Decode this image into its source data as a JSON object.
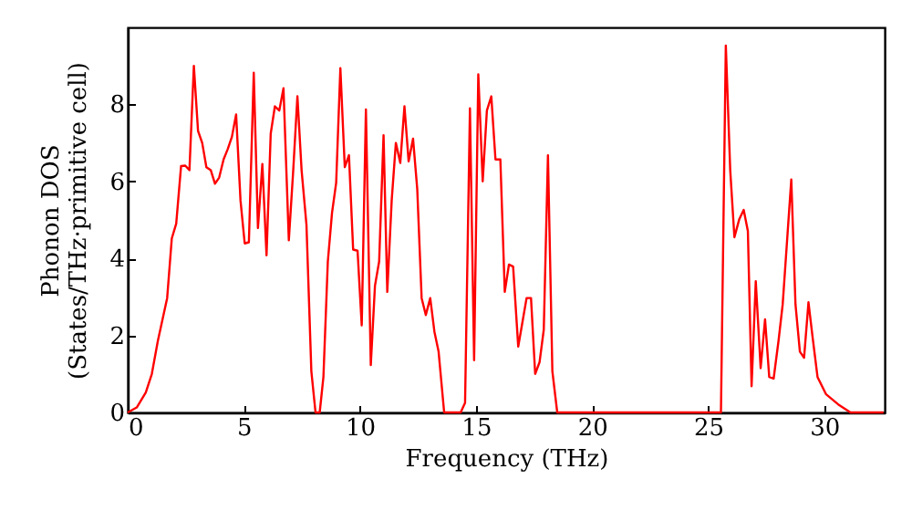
{
  "chart_data": {
    "type": "line",
    "xlabel": "Frequency (THz)",
    "ylabel": "Phonon DOS\n(States/THz·primitive cell)",
    "xlim": [
      0,
      32.6
    ],
    "ylim": [
      0,
      10
    ],
    "xticks": [
      0,
      5,
      10,
      15,
      20,
      25,
      30
    ],
    "yticks": [
      0,
      2,
      4,
      6,
      8
    ],
    "grid": false,
    "marker": "none",
    "line_style": "solid",
    "x": [
      0,
      0.39,
      0.78,
      1.04,
      1.3,
      1.7,
      1.9,
      2.09,
      2.3,
      2.48,
      2.66,
      2.85,
      3.03,
      3.21,
      3.39,
      3.58,
      3.76,
      3.94,
      4.13,
      4.31,
      4.49,
      4.67,
      4.86,
      5.04,
      5.22,
      5.43,
      5.61,
      5.8,
      5.98,
      6.16,
      6.34,
      6.53,
      6.71,
      6.94,
      7.13,
      7.31,
      7.49,
      7.7,
      7.91,
      8.09,
      8.27,
      8.43,
      8.62,
      8.8,
      8.98,
      9.16,
      9.35,
      9.53,
      9.71,
      9.9,
      10.08,
      10.26,
      10.47,
      10.65,
      10.83,
      11.02,
      11.18,
      11.37,
      11.55,
      11.74,
      11.92,
      12.1,
      12.29,
      12.47,
      12.66,
      12.84,
      13.03,
      13.21,
      13.39,
      13.63,
      14.34,
      14.53,
      14.74,
      14.92,
      15.1,
      15.29,
      15.47,
      15.66,
      15.84,
      16.05,
      16.24,
      16.42,
      16.6,
      16.82,
      17.0,
      17.18,
      17.37,
      17.55,
      17.74,
      17.92,
      18.1,
      18.29,
      18.5,
      25.55,
      25.76,
      25.95,
      26.13,
      26.34,
      26.53,
      26.71,
      26.87,
      27.05,
      27.26,
      27.45,
      27.63,
      27.82,
      28.03,
      28.21,
      28.39,
      28.58,
      28.76,
      28.95,
      29.13,
      29.32,
      29.5,
      29.71,
      30.08,
      30.6,
      31.13,
      32.55
    ],
    "series": [
      {
        "color": "#ff0000",
        "values": [
          0,
          0.13,
          0.52,
          1.0,
          1.86,
          2.97,
          4.52,
          4.9,
          6.4,
          6.41,
          6.29,
          9.0,
          7.31,
          7.0,
          6.37,
          6.29,
          5.94,
          6.1,
          6.57,
          6.84,
          7.16,
          7.74,
          5.5,
          4.39,
          4.42,
          8.82,
          4.79,
          6.45,
          4.08,
          7.24,
          7.95,
          7.84,
          8.42,
          4.47,
          6.29,
          8.21,
          6.29,
          4.87,
          1.07,
          0,
          0,
          0.92,
          3.92,
          5.18,
          5.97,
          8.94,
          6.37,
          6.68,
          4.23,
          4.2,
          2.26,
          7.87,
          1.23,
          3.29,
          3.92,
          7.2,
          3.13,
          5.5,
          7.0,
          6.48,
          7.95,
          6.52,
          7.11,
          5.81,
          2.97,
          2.53,
          2.97,
          2.1,
          1.58,
          0,
          0,
          0.25,
          7.9,
          1.36,
          8.78,
          6.0,
          7.84,
          8.21,
          6.57,
          6.57,
          3.13,
          3.84,
          3.79,
          1.71,
          2.34,
          2.97,
          2.97,
          1.0,
          1.31,
          2.15,
          6.68,
          1.07,
          0,
          0,
          9.53,
          6.29,
          4.55,
          5.02,
          5.26,
          4.71,
          0.68,
          3.41,
          1.15,
          2.42,
          0.92,
          0.88,
          1.86,
          2.81,
          4.39,
          6.05,
          2.81,
          1.58,
          1.42,
          2.86,
          1.94,
          0.92,
          0.47,
          0.21,
          0,
          0
        ]
      }
    ]
  }
}
